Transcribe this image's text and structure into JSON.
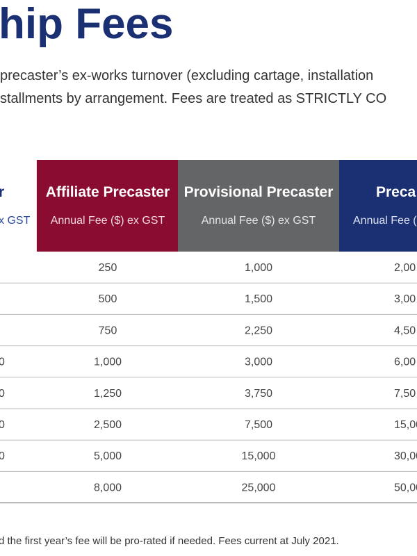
{
  "header": {
    "title": "hip Fees"
  },
  "intro": {
    "lines": [
      "precaster’s ex-works turnover (excluding cartage, installation",
      "stallments by arrangement. Fees are treated as STRICTLY CO"
    ]
  },
  "table": {
    "columns": [
      {
        "title": "r",
        "subtitle": "x GST"
      },
      {
        "title": "Affiliate Precaster",
        "subtitle": "Annual Fee ($) ex GST"
      },
      {
        "title": "Provisional Precaster",
        "subtitle": "Annual Fee ($) ex GST"
      },
      {
        "title": "Preca",
        "subtitle": "Annual Fee ("
      }
    ],
    "rows": [
      [
        null,
        "250",
        "1,000",
        "2,00"
      ],
      [
        null,
        "500",
        "1,500",
        "3,00"
      ],
      [
        null,
        "750",
        "2,250",
        "4,50"
      ],
      [
        "0",
        "1,000",
        "3,000",
        "6,00"
      ],
      [
        "0",
        "1,250",
        "3,750",
        "7,50"
      ],
      [
        "0",
        "2,500",
        "7,500",
        "15,00"
      ],
      [
        "0",
        "5,000",
        "15,000",
        "30,00"
      ],
      [
        null,
        "8,000",
        "25,000",
        "50,00"
      ]
    ]
  },
  "footnote": "d the first year’s fee will be pro-rated if needed. Fees current at July 2021."
}
